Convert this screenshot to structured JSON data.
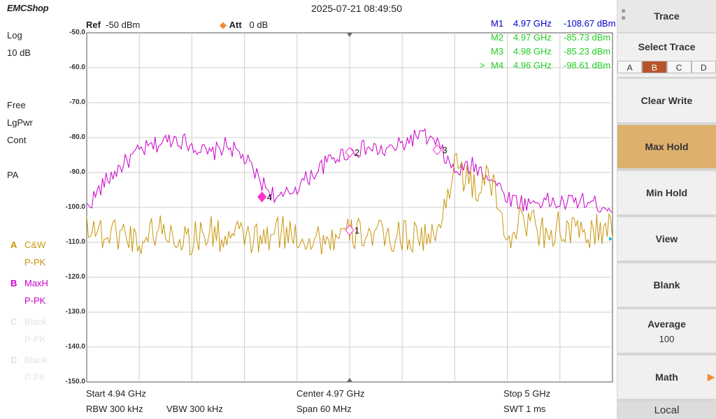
{
  "header": {
    "logo": "EMCShop",
    "datetime": "2025-07-21 08:49:50"
  },
  "left_info": {
    "scale": "Log",
    "division": "10 dB",
    "free": "Free",
    "lgpwr": "LgPwr",
    "cont": "Cont",
    "pa": "PA"
  },
  "traces": [
    {
      "key": "A",
      "mode": "C&W",
      "det": "P-PK",
      "color": "#c8960a"
    },
    {
      "key": "B",
      "mode": "MaxH",
      "det": "P-PK",
      "color": "#cc00cc"
    },
    {
      "key": "C",
      "mode": "Blank",
      "det": "P-PK",
      "color": "#e4e4e4"
    },
    {
      "key": "D",
      "mode": "Blank",
      "det": "P-PK",
      "color": "#e4e4e4"
    }
  ],
  "ref": {
    "ref_label": "Ref",
    "ref_value": "-50 dBm",
    "att_label": "Att",
    "att_value": "0 dB"
  },
  "markers": [
    {
      "prefix": "",
      "name": "M1",
      "freq": "4.97 GHz",
      "value": "-108.67 dBm",
      "color": "#0000cc"
    },
    {
      "prefix": "",
      "name": "M2",
      "freq": "4.97 GHz",
      "value": "-85.73 dBm",
      "color": "#22cc22"
    },
    {
      "prefix": "",
      "name": "M3",
      "freq": "4.98 GHz",
      "value": "-85.23 dBm",
      "color": "#22cc22"
    },
    {
      "prefix": ">",
      "name": "M4",
      "freq": "4.96 GHz",
      "value": "-98.61 dBm",
      "color": "#22cc22"
    }
  ],
  "chart_data": {
    "type": "line",
    "xlabel": "",
    "ylabel": "",
    "x_unit": "GHz",
    "y_unit": "dBm",
    "xlim": [
      4.94,
      5.0
    ],
    "ylim": [
      -150,
      -50
    ],
    "y_ticks": [
      "-50.0",
      "-60.0",
      "-70.0",
      "-80.0",
      "-90.0",
      "-100.0",
      "-110.0",
      "-120.0",
      "-130.0",
      "-140.0",
      "-150.0"
    ],
    "grid": true,
    "series": [
      {
        "name": "MaxH",
        "trace": "B",
        "color": "#cc00cc",
        "x": [
          4.94,
          4.942,
          4.944,
          4.946,
          4.948,
          4.95,
          4.952,
          4.954,
          4.956,
          4.958,
          4.96,
          4.962,
          4.964,
          4.966,
          4.968,
          4.97,
          4.972,
          4.974,
          4.976,
          4.978,
          4.98,
          4.982,
          4.984,
          4.986,
          4.988,
          4.99,
          4.992,
          4.994,
          4.996,
          4.998,
          5.0
        ],
        "y": [
          -100,
          -93,
          -88,
          -84,
          -82,
          -80,
          -82,
          -85,
          -82,
          -86,
          -93,
          -98,
          -94,
          -90,
          -86,
          -84,
          -83,
          -84,
          -82,
          -79,
          -82,
          -90,
          -88,
          -91,
          -97,
          -99,
          -98,
          -99,
          -98,
          -99,
          -100
        ]
      },
      {
        "name": "C&W",
        "trace": "A",
        "color": "#c8960a",
        "x": [
          4.94,
          4.942,
          4.944,
          4.946,
          4.948,
          4.95,
          4.952,
          4.954,
          4.956,
          4.958,
          4.96,
          4.962,
          4.964,
          4.966,
          4.968,
          4.97,
          4.972,
          4.974,
          4.976,
          4.978,
          4.98,
          4.982,
          4.984,
          4.986,
          4.988,
          4.99,
          4.992,
          4.994,
          4.996,
          4.998,
          5.0
        ],
        "y": [
          -104,
          -108,
          -107,
          -110,
          -106,
          -108,
          -109,
          -107,
          -109,
          -108,
          -110,
          -107,
          -108,
          -109,
          -109,
          -108,
          -107,
          -109,
          -108,
          -108,
          -109,
          -86,
          -95,
          -92,
          -108,
          -103,
          -107,
          -106,
          -108,
          -107,
          -106
        ]
      }
    ],
    "marker_points": [
      {
        "label": "1",
        "x": 4.97,
        "y": -106.5
      },
      {
        "label": "2",
        "x": 4.97,
        "y": -84.2
      },
      {
        "label": "3",
        "x": 4.98,
        "y": -83.5
      },
      {
        "label": "4",
        "x": 4.96,
        "y": -97.0
      }
    ]
  },
  "footer": {
    "start": "Start  4.94 GHz",
    "center": "Center  4.97 GHz",
    "stop": "Stop  5 GHz",
    "rbw": "RBW  300 kHz",
    "vbw": "VBW  300 kHz",
    "span": "Span   60 MHz",
    "swt": "SWT  1 ms"
  },
  "softkeys": {
    "trace": "Trace",
    "select_trace": "Select Trace",
    "select_tabs": [
      "A",
      "B",
      "C",
      "D"
    ],
    "selected_tab": "B",
    "clear_write": "Clear Write",
    "max_hold": "Max Hold",
    "min_hold": "Min Hold",
    "view": "View",
    "blank": "Blank",
    "average": "Average",
    "average_value": "100",
    "math": "Math",
    "local": "Local"
  }
}
